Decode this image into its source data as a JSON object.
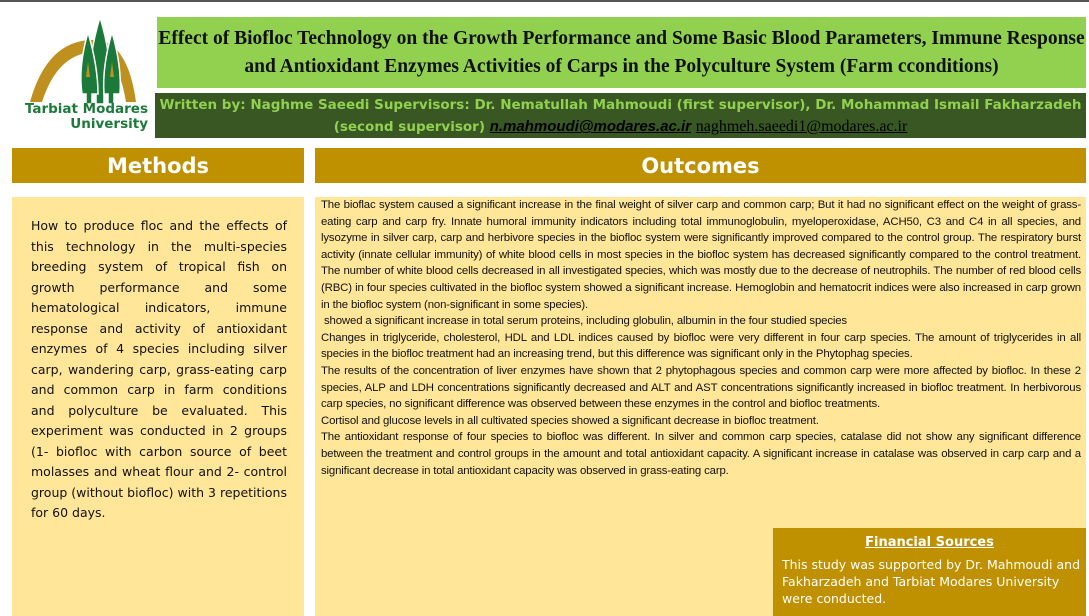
{
  "logo": {
    "text_line1": "Tarbiat Modares",
    "text_line2": "University"
  },
  "title": "Effect of Biofloc Technology on the Growth Performance and Some Basic Blood Parameters, Immune Response and Antioxidant Enzymes Activities of Carps in the Polyculture System (Farm cconditions)",
  "authors": {
    "text": "Written by: Naghme Saeedi Supervisors: Dr. Nematullah Mahmoudi (first supervisor), Dr. Mohammad Ismail Fakharzadeh (second supervisor)",
    "email1": "n.mahmoudi@modares.ac.ir",
    "email2": "naghmeh.saeedi1@modares.ac.ir"
  },
  "colors": {
    "title_bg": "#92d050",
    "author_bg": "#385723",
    "header_bg": "#bf9000",
    "panel_bg": "#ffe699"
  },
  "methods": {
    "heading": "Methods",
    "body": "How to produce floc and the effects of this technology in the multi-species breeding system of tropical fish on growth performance and some hematological indicators, immune response and activity of antioxidant enzymes of 4 species including silver carp, wandering carp, grass-eating carp and common carp in farm conditions and polyculture be evaluated. This experiment was conducted in 2 groups (1- biofloc with carbon source of beet molasses and wheat flour and 2- control group (without biofloc) with 3 repetitions for 60 days."
  },
  "outcomes": {
    "heading": "Outcomes",
    "paragraphs": [
      "The bioflac system caused a significant increase in the final weight of silver carp and common carp; But it had no significant effect on the weight of grass-eating carp and carp fry. Innate humoral immunity indicators including total immunoglobulin, myeloperoxidase, ACH50, C3 and C4 in all species, and lysozyme in silver carp, carp and herbivore species in the biofloc system were significantly improved compared to the control group. The respiratory burst activity (innate cellular immunity) of white blood cells in most species in the biofloc system has decreased significantly compared to the control treatment. The number of white blood cells decreased in all investigated species, which was mostly due to the decrease of neutrophils. The number of red blood cells (RBC) in four species cultivated in the biofloc system showed a significant increase. Hemoglobin and hematocrit indices were also increased in carp grown in the biofloc system (non-significant in some species).",
      " showed a significant increase in total serum proteins, including globulin, albumin in the four studied species",
      "Changes in triglyceride, cholesterol, HDL and LDL indices caused by biofloc were very different in four carp species. The amount of triglycerides in all species in the biofloc treatment had an increasing trend, but this difference was significant only in the Phytophag species.",
      "The results of the concentration of liver enzymes have shown that 2 phytophagous species and common carp were more affected by biofloc. In these 2 species, ALP and LDH concentrations significantly decreased and ALT and AST concentrations significantly increased in biofloc treatment. In herbivorous carp species, no significant difference was observed between these enzymes in the control and biofloc treatments.",
      "Cortisol and glucose levels in all cultivated species showed a significant decrease in biofloc treatment.",
      "The antioxidant response of four species to biofloc was different. In silver and common carp species, catalase did not show any significant difference between the treatment and control groups in the amount and total antioxidant capacity. A significant increase in catalase was observed in carp carp and a significant decrease in total antioxidant capacity was observed in grass-eating carp."
    ]
  },
  "financial": {
    "heading": "Financial Sources",
    "body": "This study was supported by Dr. Mahmoudi and Fakharzadeh and Tarbiat Modares University were conducted."
  }
}
